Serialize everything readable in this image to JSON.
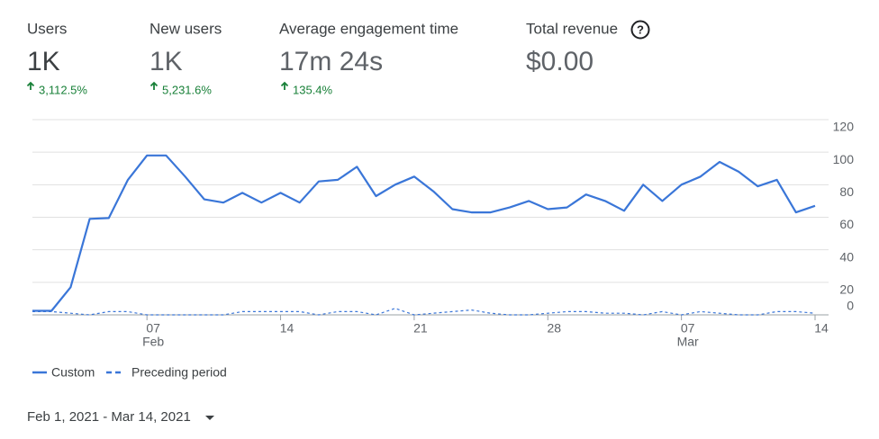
{
  "metrics": [
    {
      "label": "Users",
      "value": "1K",
      "change": "3,112.5%"
    },
    {
      "label": "New users",
      "value": "1K",
      "change": "5,231.6%"
    },
    {
      "label": "Average engagement time",
      "value": "17m 24s",
      "change": "135.4%"
    },
    {
      "label": "Total revenue",
      "value": "$0.00"
    }
  ],
  "chart_data": {
    "type": "line",
    "categories": [
      null,
      null,
      null,
      null,
      null,
      null,
      "07",
      null,
      null,
      null,
      null,
      null,
      null,
      "14",
      null,
      null,
      null,
      null,
      null,
      null,
      "21",
      null,
      null,
      null,
      null,
      null,
      null,
      "28",
      null,
      null,
      null,
      null,
      null,
      null,
      "07",
      null,
      null,
      null,
      null,
      null,
      null,
      "14"
    ],
    "month_labels": [
      null,
      null,
      null,
      null,
      null,
      null,
      "Feb",
      null,
      null,
      null,
      null,
      null,
      null,
      null,
      null,
      null,
      null,
      null,
      null,
      null,
      null,
      null,
      null,
      null,
      null,
      null,
      null,
      null,
      null,
      null,
      null,
      null,
      null,
      null,
      "Mar",
      null,
      null,
      null,
      null,
      null,
      null,
      null
    ],
    "series": [
      {
        "name": "Custom",
        "color": "#3a76d8",
        "dash": false,
        "values": [
          2.5,
          2.5,
          17,
          59,
          59.5,
          83,
          98,
          98,
          85,
          71,
          69,
          75,
          69,
          75,
          69,
          82,
          83,
          91,
          73,
          80,
          85,
          76,
          65,
          63,
          63,
          66,
          70,
          65,
          66,
          74,
          70,
          64,
          80,
          70,
          80,
          85,
          94,
          88,
          79,
          83,
          63,
          67
        ]
      },
      {
        "name": "Preceding period",
        "color": "#3a76d8",
        "dash": true,
        "values": [
          2,
          2,
          1,
          0,
          2,
          2,
          0,
          0,
          0,
          0,
          0,
          2,
          2,
          2,
          2,
          0,
          2,
          2,
          0,
          4,
          0,
          1,
          2,
          3,
          1,
          0,
          0,
          1,
          2,
          2,
          1,
          1,
          0,
          2,
          0,
          2,
          1,
          0,
          0,
          2,
          2,
          1
        ]
      }
    ],
    "ylim": [
      0,
      120
    ],
    "yticks": [
      0,
      20,
      40,
      60,
      80,
      100,
      120
    ],
    "grid": true,
    "legend": "bottom-left"
  },
  "date_range": "Feb 1, 2021 - Mar 14, 2021"
}
